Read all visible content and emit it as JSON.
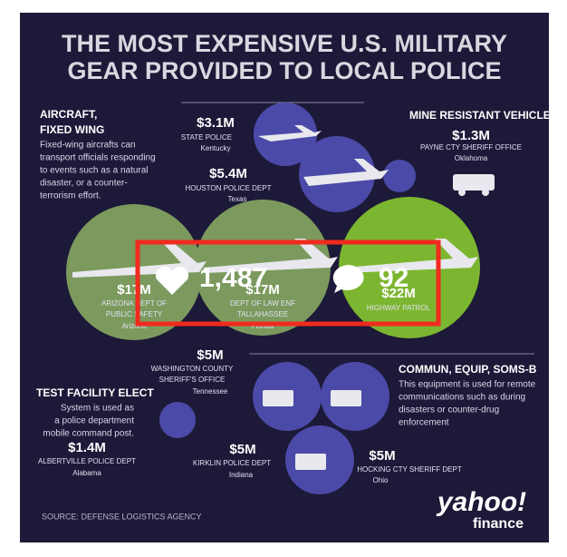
{
  "title": [
    "THE MOST EXPENSIVE U.S. MILITARY",
    "GEAR PROVIDED TO LOCAL POLICE"
  ],
  "sections": [
    {
      "heading": [
        "AIRCRAFT,",
        "FIXED WING"
      ],
      "description": [
        "Fixed-wing aircrafts can",
        "transport officials responding",
        "to events such as a natural",
        "disaster, or a counter-",
        "terrorism effort."
      ]
    },
    {
      "heading": [
        "MINE RESISTANT VEHICLE"
      ],
      "description": []
    },
    {
      "heading": [
        "COMMUN, EQUIP, SOMS-B"
      ],
      "description": [
        "This equipment is used for remote",
        "communications such as during",
        "disasters or counter-drug",
        "enforcement"
      ]
    },
    {
      "heading": [
        "TEST FACILITY ELECT"
      ],
      "description": [
        "System is used as",
        "a police department",
        "mobile command post."
      ]
    }
  ],
  "items": [
    {
      "amount": "$3.1M",
      "agency": [
        "STATE POLICE"
      ],
      "location": "Kentucky"
    },
    {
      "amount": "$5.4M",
      "agency": [
        "HOUSTON POLICE DEPT"
      ],
      "location": "Texas"
    },
    {
      "amount": "$1.3M",
      "agency": [
        "PAYNE CTY SHERIFF OFFICE"
      ],
      "location": "Oklahoma"
    },
    {
      "amount": "$17M",
      "agency": [
        "ARIZONA DEPT OF",
        "PUBLIC SAFETY"
      ],
      "location": "Arizona"
    },
    {
      "amount": "$17M",
      "agency": [
        "DEPT OF LAW ENF",
        "TALLAHASSEE"
      ],
      "location": "Florida"
    },
    {
      "amount": "$22M",
      "agency": [
        "HIGHWAY PATROL"
      ],
      "location": null
    },
    {
      "amount": "$5M",
      "agency": [
        "WASHINGTON COUNTY",
        "SHERIFF'S OFFICE"
      ],
      "location": "Tennessee"
    },
    {
      "amount": "$1.4M",
      "agency": [
        "ALBERTVILLE POLICE DEPT"
      ],
      "location": "Alabama"
    },
    {
      "amount": "$5M",
      "agency": [
        "KIRKLIN POLICE DEPT"
      ],
      "location": "Indiana"
    },
    {
      "amount": "$5M",
      "agency": [
        "HOCKING CTY SHERIFF DEPT"
      ],
      "location": "Ohio"
    }
  ],
  "source": "SOURCE:  DEFENSE LOGISTICS AGENCY",
  "logo": {
    "brand": "yahoo!",
    "product": "finance"
  },
  "overlay": {
    "likes": "1,487",
    "comments": "92"
  }
}
